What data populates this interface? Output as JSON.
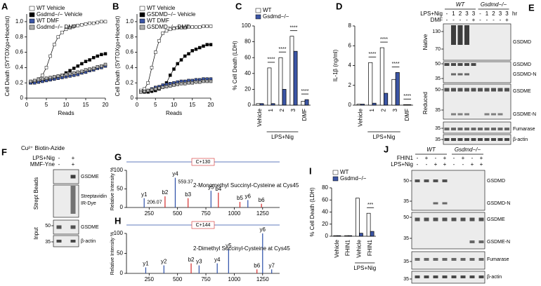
{
  "chart_data": [
    {
      "panel": "A",
      "type": "line",
      "ylabel": "Cell Death (SYTOXgo+Hoechst)",
      "xlabel": "Reads",
      "legend": "upper left",
      "x": [
        1,
        2,
        3,
        4,
        5,
        6,
        7,
        8,
        9,
        10,
        11,
        12,
        13,
        14,
        15,
        16,
        17,
        18,
        19,
        20
      ],
      "xlim": [
        0,
        20
      ],
      "xticks": [
        0,
        5,
        10,
        15,
        20
      ],
      "ylim": [
        0,
        1.1
      ],
      "yticks": [
        0,
        0.2,
        0.4,
        0.6,
        0.8,
        {
          "value": 1,
          "label": "1.0"
        }
      ],
      "series": [
        {
          "name": "WT Vehicle",
          "color": "#ffffff",
          "values": [
            0.2,
            0.22,
            0.25,
            0.3,
            0.4,
            0.55,
            0.7,
            0.8,
            0.86,
            0.9,
            0.92,
            0.94,
            0.95,
            0.96,
            0.97,
            0.98,
            0.98,
            0.99,
            1.0,
            1.0
          ]
        },
        {
          "name": "Gsdmd−/− Vehicle",
          "color": "#000000",
          "values": [
            0.2,
            0.21,
            0.22,
            0.23,
            0.24,
            0.25,
            0.26,
            0.28,
            0.3,
            0.33,
            0.36,
            0.39,
            0.42,
            0.45,
            0.48,
            0.5,
            0.53,
            0.55,
            0.57,
            0.58
          ]
        },
        {
          "name": "WT DMF",
          "color": "#3b55a5",
          "values": [
            0.2,
            0.2,
            0.21,
            0.22,
            0.23,
            0.24,
            0.25,
            0.26,
            0.27,
            0.28,
            0.29,
            0.3,
            0.31,
            0.33,
            0.34,
            0.36,
            0.37,
            0.39,
            0.4,
            0.42
          ]
        },
        {
          "name": "Gsdmd−/− DMF",
          "color": "#b0b0b0",
          "values": [
            0.22,
            0.23,
            0.24,
            0.25,
            0.26,
            0.27,
            0.28,
            0.29,
            0.3,
            0.31,
            0.32,
            0.33,
            0.34,
            0.35,
            0.37,
            0.38,
            0.39,
            0.41,
            0.42,
            0.44
          ]
        }
      ]
    },
    {
      "panel": "B",
      "type": "line",
      "ylabel": "Cell Death (SYTOXgo+Hoechst)",
      "xlabel": "Reads",
      "legend": "upper left",
      "x": [
        1,
        2,
        3,
        4,
        5,
        6,
        7,
        8,
        9,
        10,
        11,
        12,
        13,
        14,
        15,
        16,
        17,
        18,
        19,
        20
      ],
      "xlim": [
        0,
        20
      ],
      "xticks": [
        0,
        5,
        10,
        15,
        20
      ],
      "ylim": [
        0,
        1.1
      ],
      "yticks": [
        0,
        0.2,
        0.4,
        0.6,
        0.8,
        {
          "value": 1,
          "label": "1.0"
        }
      ],
      "series": [
        {
          "name": "WT Vehicle",
          "color": "#ffffff",
          "values": [
            0.1,
            0.12,
            0.2,
            0.4,
            0.6,
            0.75,
            0.85,
            0.88,
            0.9,
            0.91,
            0.92,
            0.92,
            0.92,
            0.93,
            0.93,
            0.93,
            0.93,
            0.94,
            0.94,
            0.94
          ]
        },
        {
          "name": "GSDMD−/− Vehicle",
          "color": "#000000",
          "values": [
            0.08,
            0.08,
            0.08,
            0.09,
            0.1,
            0.12,
            0.15,
            0.2,
            0.3,
            0.38,
            0.45,
            0.5,
            0.55,
            0.58,
            0.62,
            0.64,
            0.66,
            0.68,
            0.7,
            0.7
          ]
        },
        {
          "name": "WT DMF",
          "color": "#3b55a5",
          "values": [
            0.08,
            0.09,
            0.1,
            0.12,
            0.14,
            0.15,
            0.17,
            0.18,
            0.19,
            0.2,
            0.21,
            0.22,
            0.22,
            0.23,
            0.23,
            0.24,
            0.24,
            0.25,
            0.25,
            0.25
          ]
        },
        {
          "name": "GSDMD−/− DMF",
          "color": "#b0b0b0",
          "values": [
            0.08,
            0.09,
            0.1,
            0.11,
            0.12,
            0.13,
            0.14,
            0.15,
            0.16,
            0.17,
            0.18,
            0.19,
            0.19,
            0.2,
            0.2,
            0.21,
            0.21,
            0.22,
            0.22,
            0.22
          ]
        }
      ]
    },
    {
      "panel": "C",
      "type": "bar",
      "ylabel": "% Cell Death (LDH)",
      "legend": "upper left",
      "group_label": "LPS+Nig",
      "categories": [
        "Vehicle",
        "1",
        "2",
        "3",
        "DMF"
      ],
      "ylim": [
        0,
        100
      ],
      "yticks": [
        0,
        20,
        40,
        60,
        80,
        100
      ],
      "annotations": [
        "****",
        "****",
        "****",
        "****"
      ],
      "series": [
        {
          "name": "WT",
          "color": "#ffffff",
          "values": [
            2,
            47,
            60,
            87,
            5
          ]
        },
        {
          "name": "Gsdmd−/−",
          "color": "#3b55a5",
          "values": [
            2,
            2,
            20,
            68,
            7
          ]
        }
      ]
    },
    {
      "panel": "D",
      "type": "bar",
      "ylabel": "IL-1β (ng/ml)",
      "group_label": "LPS+Nig",
      "categories": [
        "Vehicle",
        "1",
        "2",
        "3",
        "DMF"
      ],
      "ylim": [
        0,
        8
      ],
      "yticks": [
        0,
        2,
        4,
        6,
        8
      ],
      "annotations": [
        "****",
        "****",
        "****",
        "****"
      ],
      "series": [
        {
          "color": "#ffffff",
          "values": [
            0.1,
            4.3,
            5.8,
            2.6,
            0.05
          ]
        },
        {
          "color": "#3b55a5",
          "values": [
            0.1,
            0.2,
            1.2,
            3.3,
            0.05
          ]
        }
      ]
    },
    {
      "panel": "I",
      "type": "bar",
      "ylabel": "% Cell Death (LDH)",
      "legend": "upper left",
      "group_label": "LPS+Nig",
      "categories": [
        "Vehicle",
        "FHIN1",
        "Vehicle",
        "FHIN1"
      ],
      "ylim": [
        0,
        80
      ],
      "yticks": [
        0,
        20,
        40,
        60,
        80
      ],
      "annotations": [
        "***"
      ],
      "series": [
        {
          "name": "WT",
          "color": "#ffffff",
          "values": [
            1,
            1,
            63,
            38
          ]
        },
        {
          "name": "Gsdmd−/−",
          "color": "#3b55a5",
          "values": [
            1,
            1,
            5,
            8
          ]
        }
      ]
    },
    {
      "panel": "G",
      "type": "stick",
      "title": "2-Monomethyl Succinyl-Cysteine at Cys45",
      "ylabel": "Relative Intensity %",
      "modification": "C+130",
      "xlim": [
        50,
        1400
      ],
      "xticks": [
        250,
        500,
        750,
        1000,
        1250
      ],
      "ylim": [
        0,
        100
      ],
      "yticks": [
        0,
        50,
        100
      ],
      "x": [
        206,
        390,
        480,
        593,
        795,
        860,
        1050,
        1120,
        1240
      ],
      "values": [
        25,
        30,
        80,
        25,
        45,
        40,
        15,
        20,
        10
      ],
      "peak_labels": [
        "y1",
        "b2",
        "y4",
        "b3",
        "y5",
        "b4",
        "b5",
        "y6",
        "b6"
      ],
      "peak_colors": [
        "#2b4fa8",
        "#d42a2a",
        "#2b4fa8",
        "#d42a2a",
        "#2b4fa8",
        "#d42a2a",
        "#d42a2a",
        "#2b4fa8",
        "#d42a2a"
      ],
      "annotations": [
        "206.07",
        "559.37"
      ]
    },
    {
      "panel": "H",
      "type": "stick",
      "title": "2-Dimethyl Succinyl-Cysteine at Cys45",
      "ylabel": "Relative Intensity %",
      "modification": "C+144",
      "xlim": [
        50,
        1400
      ],
      "xticks": [
        250,
        500,
        750,
        1000,
        1250
      ],
      "ylim": [
        0,
        100
      ],
      "yticks": [
        0,
        50,
        100
      ],
      "x": [
        220,
        380,
        620,
        690,
        850,
        950,
        1200,
        1250,
        1330
      ],
      "values": [
        15,
        20,
        25,
        20,
        25,
        60,
        10,
        100,
        10
      ],
      "peak_labels": [
        "y1",
        "y2",
        "b2",
        "y3",
        "y4",
        "y5",
        "b6",
        "y6",
        "y7"
      ],
      "peak_colors": [
        "#2b4fa8",
        "#2b4fa8",
        "#d42a2a",
        "#2b4fa8",
        "#2b4fa8",
        "#2b4fa8",
        "#d42a2a",
        "#2b4fa8",
        "#2b4fa8"
      ]
    }
  ],
  "blots": {
    "E": {
      "label": "E",
      "groups": [
        "WT",
        "Gsdmd−/−"
      ],
      "unit": "hr",
      "rows": [
        {
          "label": "LPS+Nig",
          "signs": [
            "-",
            "1",
            "2",
            "3",
            "3",
            "-",
            "1",
            "2",
            "3",
            "3"
          ]
        },
        {
          "label": "DMF",
          "signs": [
            "-",
            "-",
            "-",
            "-",
            "+",
            "-",
            "-",
            "-",
            "-",
            "+"
          ]
        }
      ],
      "sections": [
        "Native",
        "Reduced"
      ],
      "markers": [
        130,
        70,
        50,
        35,
        50,
        35,
        35,
        35
      ],
      "bands": [
        "GSDMD",
        "GSDMD",
        "GSDMD-N",
        "GSDME",
        "GSDME-N",
        "Fumarase",
        "β-actin"
      ]
    },
    "F": {
      "label": "F",
      "title": "Cu²⁺ Biotin-Azide",
      "rows": [
        {
          "label": "LPS+Nig",
          "signs": [
            "-",
            "+"
          ]
        },
        {
          "label": "MMF-Yne",
          "signs": [
            "-",
            "+"
          ]
        }
      ],
      "sections": [
        "Strept Beads",
        "Input"
      ],
      "markers": [
        50,
        35
      ],
      "bands": [
        "GSDME",
        "Streptavidin",
        "IR-Dye",
        "GSDME",
        "β-actin"
      ]
    },
    "J": {
      "label": "J",
      "groups": [
        "WT",
        "Gsdmd−/−"
      ],
      "rows": [
        {
          "label": "FHIN1",
          "signs": [
            "-",
            "+",
            "-",
            "+",
            "-",
            "+",
            "-",
            "+"
          ]
        },
        {
          "label": "LPS+Nig",
          "signs": [
            "-",
            "-",
            "+",
            "+",
            "-",
            "-",
            "+",
            "+"
          ]
        }
      ],
      "markers": [
        50,
        35,
        50,
        35,
        35,
        35
      ],
      "bands": [
        "GSDMD",
        "GSDMD-N",
        "GSDME",
        "GSDME-N",
        "Fumarase",
        "β-actin"
      ]
    }
  }
}
